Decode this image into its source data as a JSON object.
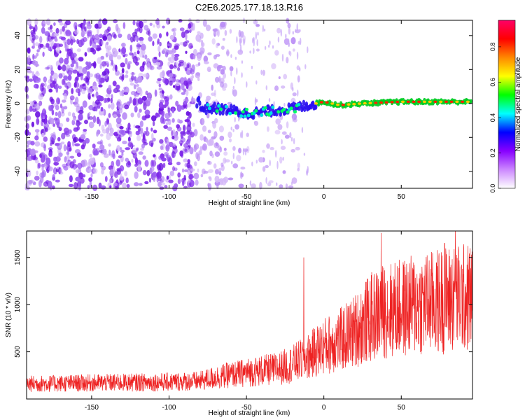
{
  "title": "C2E6.2025.177.18.13.R16",
  "colors": {
    "snr_line": "#ee2222",
    "axis": "#000000",
    "background": "#ffffff"
  },
  "chart_data": [
    {
      "type": "heatmap",
      "xlabel": "Height of straight line (km)",
      "ylabel": "Frequency (Hz)",
      "xlim": [
        -192,
        96
      ],
      "ylim": [
        -50,
        49
      ],
      "xticks": [
        -150,
        -100,
        -50,
        0,
        50
      ],
      "yticks": [
        -40,
        -20,
        0,
        20,
        40
      ],
      "grid": false,
      "colorbar": {
        "label": "Normalized spectral amplitude",
        "range": [
          0.0,
          0.95
        ],
        "ticks": [
          0.0,
          0.2,
          0.4,
          0.6,
          0.8
        ],
        "tick_labels": [
          "0.0",
          "0.2",
          "0.4",
          "0.6",
          "0.8"
        ],
        "colormap": [
          "#ffffff",
          "#cc88ff",
          "#8800ff",
          "#0000ff",
          "#00ffff",
          "#00ff00",
          "#ffff00",
          "#ff8800",
          "#ff0000",
          "#ff0066"
        ]
      },
      "signal_track": [
        {
          "x": -80,
          "y": -3
        },
        {
          "x": -70,
          "y": -3
        },
        {
          "x": -60,
          "y": -4
        },
        {
          "x": -50,
          "y": -6
        },
        {
          "x": -40,
          "y": -5
        },
        {
          "x": -30,
          "y": -4
        },
        {
          "x": -20,
          "y": -3
        },
        {
          "x": -10,
          "y": -1
        },
        {
          "x": 0,
          "y": 1
        },
        {
          "x": 10,
          "y": -1
        },
        {
          "x": 25,
          "y": 0
        },
        {
          "x": 50,
          "y": 1
        },
        {
          "x": 75,
          "y": 1
        },
        {
          "x": 96,
          "y": 1
        }
      ]
    },
    {
      "type": "line",
      "xlabel": "Height of straight line (km)",
      "ylabel": "SNR (10 * v/v)",
      "xlim": [
        -192,
        96
      ],
      "ylim": [
        0,
        1780
      ],
      "xticks": [
        -150,
        -100,
        -50,
        0,
        50
      ],
      "yticks": [
        500,
        1000,
        1500
      ],
      "grid": false,
      "trend": [
        {
          "x": -192,
          "y": 160
        },
        {
          "x": -150,
          "y": 170
        },
        {
          "x": -100,
          "y": 180
        },
        {
          "x": -80,
          "y": 190
        },
        {
          "x": -70,
          "y": 230
        },
        {
          "x": -50,
          "y": 280
        },
        {
          "x": -30,
          "y": 320
        },
        {
          "x": -20,
          "y": 370
        },
        {
          "x": -10,
          "y": 450
        },
        {
          "x": 0,
          "y": 560
        },
        {
          "x": 10,
          "y": 620
        },
        {
          "x": 20,
          "y": 720
        },
        {
          "x": 30,
          "y": 860
        },
        {
          "x": 40,
          "y": 940
        },
        {
          "x": 50,
          "y": 960
        },
        {
          "x": 60,
          "y": 1000
        },
        {
          "x": 70,
          "y": 1020
        },
        {
          "x": 80,
          "y": 1060
        },
        {
          "x": 96,
          "y": 1080
        }
      ],
      "peaks": [
        {
          "x": -13,
          "y": 1500
        },
        {
          "x": 37,
          "y": 1760
        },
        {
          "x": 78,
          "y": 1650
        },
        {
          "x": 85,
          "y": 1780
        }
      ]
    }
  ]
}
